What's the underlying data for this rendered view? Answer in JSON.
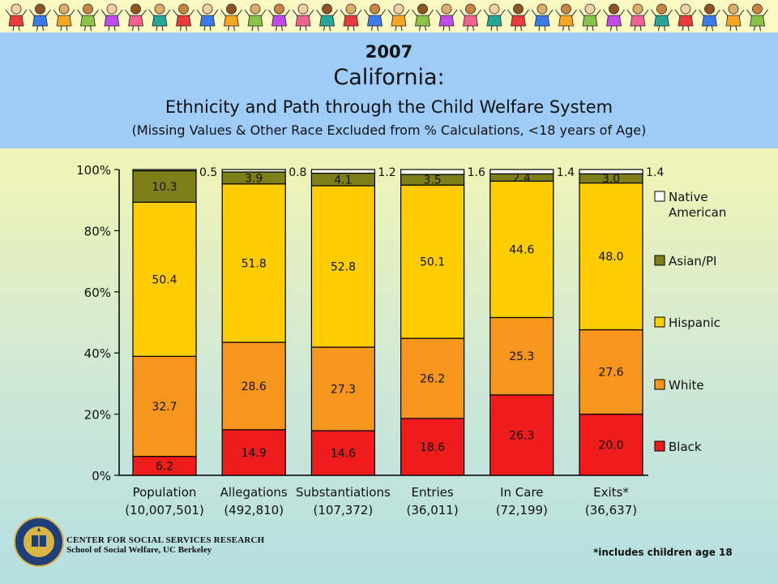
{
  "title": {
    "year": "2007",
    "main": "California:",
    "subtitle": "Ethnicity and Path through the Child Welfare System",
    "note": "(Missing Values & Other Race Excluded from % Calculations, <18 years of Age)"
  },
  "chart_data": {
    "type": "bar",
    "stacked": true,
    "title": "California: Ethnicity and Path through the Child Welfare System",
    "ylim": [
      0,
      100
    ],
    "y_ticks": [
      "0%",
      "20%",
      "40%",
      "60%",
      "80%",
      "100%"
    ],
    "categories": [
      "Population",
      "Allegations",
      "Substantiations",
      "Entries",
      "In Care",
      "Exits*"
    ],
    "category_counts": [
      "(10,007,501)",
      "(492,810)",
      "(107,372)",
      "(36,011)",
      "(72,199)",
      "(36,637)"
    ],
    "series": [
      {
        "name": "Black",
        "color": "#ee1c1c",
        "values": [
          6.2,
          14.9,
          14.6,
          18.6,
          26.3,
          20.0
        ],
        "labels": [
          "6.2",
          "14.9",
          "14.6",
          "18.6",
          "26.3",
          "20.0"
        ]
      },
      {
        "name": "White",
        "color": "#f7961d",
        "values": [
          32.7,
          28.6,
          27.3,
          26.2,
          25.3,
          27.6
        ],
        "labels": [
          "32.7",
          "28.6",
          "27.3",
          "26.2",
          "25.3",
          "27.6"
        ]
      },
      {
        "name": "Hispanic",
        "color": "#ffcc00",
        "values": [
          50.4,
          51.8,
          52.8,
          50.1,
          44.6,
          48.0
        ],
        "labels": [
          "50.4",
          "51.8",
          "52.8",
          "50.1",
          "44.6",
          "48.0"
        ]
      },
      {
        "name": "Asian/PI",
        "color": "#7f7f19",
        "values": [
          10.3,
          3.9,
          4.1,
          3.5,
          2.4,
          3.0
        ],
        "labels": [
          "10.3",
          "3.9",
          "4.1",
          "3.5",
          "2.4",
          "3.0"
        ]
      },
      {
        "name": "Native American",
        "color": "#ffffff",
        "values": [
          0.5,
          0.8,
          1.2,
          1.6,
          1.4,
          1.4
        ],
        "labels": [
          "0.5",
          "0.8",
          "1.2",
          "1.6",
          "1.4",
          "1.4"
        ]
      }
    ],
    "legend": {
      "placement": "right",
      "order": [
        "Native American",
        "Asian/PI",
        "Hispanic",
        "White",
        "Black"
      ]
    },
    "grid": false
  },
  "footer": {
    "org_line1": "CENTER FOR SOCIAL SERVICES RESEARCH",
    "org_line2": "School of Social Welfare, UC Berkeley",
    "footnote": "*includes children age 18"
  },
  "colors": {
    "title_band": "#9fccf7",
    "seal_blue": "#1f3f7a",
    "seal_gold": "#d9b545"
  }
}
